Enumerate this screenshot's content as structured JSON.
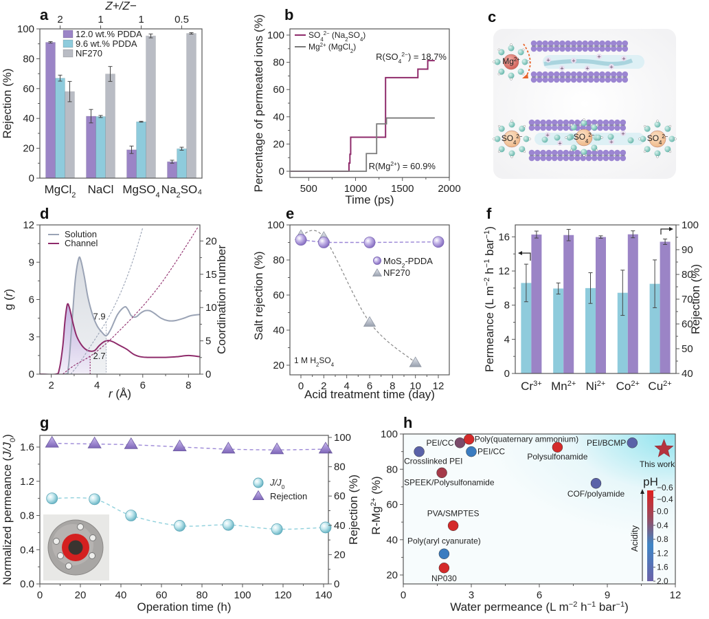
{
  "panels": {
    "a": "a",
    "b": "b",
    "c": "c",
    "d": "d",
    "e": "e",
    "f": "f",
    "g": "g",
    "h": "h"
  },
  "colors": {
    "purple": "#9b84c6",
    "cyan": "#8ecbdc",
    "grey": "#b9bcc4",
    "magenta": "#8e2a6a",
    "darkgrey": "#7a7a7a",
    "red": "#d42a2a"
  },
  "diagram_c": {
    "ion_mg": "Mg2+",
    "ion_so4": "SO4 2-"
  },
  "chart_data": [
    {
      "id": "a",
      "type": "bar",
      "title": "",
      "top_axis_label": "Z+/Z−",
      "top_ticks": [
        "2",
        "1",
        "1",
        "0.5"
      ],
      "xlabel": "",
      "ylabel": "Rejection (%)",
      "ylim": [
        0,
        100
      ],
      "yticks": [
        0,
        20,
        40,
        60,
        80,
        100
      ],
      "categories": [
        "MgCl2",
        "NaCl",
        "MgSO4",
        "Na2SO4"
      ],
      "category_labels": [
        {
          "main": "MgCl",
          "sub": "2",
          "tail": ""
        },
        {
          "main": "NaCl",
          "sub": "",
          "tail": ""
        },
        {
          "main": "MgSO",
          "sub": "4",
          "tail": ""
        },
        {
          "main": "Na",
          "sub": "2",
          "tail": "SO₄"
        }
      ],
      "legend_position": "top-left",
      "series": [
        {
          "name": "12.0 wt.% PDDA",
          "color": "#9b84c6",
          "values": [
            91,
            41.5,
            19,
            11
          ],
          "errors": [
            0.5,
            4.5,
            2.5,
            1
          ]
        },
        {
          "name": "9.6 wt.% PDDA",
          "color": "#8ecbdc",
          "values": [
            67,
            41.3,
            37.8,
            19.7
          ],
          "errors": [
            2,
            0.7,
            0.3,
            1
          ]
        },
        {
          "name": "NF270",
          "color": "#b9bcc4",
          "values": [
            58,
            69.8,
            95.3,
            97
          ],
          "errors": [
            6.8,
            5,
            1.3,
            0.5
          ]
        }
      ]
    },
    {
      "id": "b",
      "type": "line",
      "title": "",
      "xlabel": "Time (ps)",
      "ylabel": "Percentage of permeated ions (%)",
      "xlim": [
        300,
        2000
      ],
      "ylim": [
        -5,
        105
      ],
      "xticks": [
        500,
        1000,
        1500,
        2000
      ],
      "yticks": [
        0,
        20,
        40,
        60,
        80,
        100
      ],
      "legend_position": "top-left",
      "series": [
        {
          "name": "SO4 2− (Na2SO4)",
          "color": "#8e2a6a",
          "x": [
            300,
            930,
            930,
            940,
            940,
            948,
            948,
            1320,
            1320,
            1665,
            1665,
            1770,
            1770,
            1845
          ],
          "y": [
            0,
            0,
            6,
            6,
            12.5,
            12.5,
            25,
            25,
            68.75,
            68.75,
            75,
            75,
            81.25,
            81.25
          ]
        },
        {
          "name": "Mg2+ (MgCl2)",
          "color": "#7a7a7a",
          "x": [
            300,
            1115,
            1115,
            1225,
            1225,
            1330,
            1330,
            1845
          ],
          "y": [
            0,
            0,
            13,
            13,
            34.8,
            34.8,
            39.1,
            39.1
          ]
        }
      ],
      "annotations": [
        {
          "text": "R(SO4 2−) = 18.7%",
          "color": "#a0407a"
        },
        {
          "text": "R(Mg2+) = 60.9%",
          "color": "#222"
        }
      ]
    },
    {
      "id": "d",
      "type": "line",
      "xlabel": "r (Å)",
      "ylabel": "g (r)",
      "ylabel_right": "Coordination number",
      "xlim": [
        1.5,
        8.5
      ],
      "ylim": [
        0,
        12
      ],
      "ylim_right": [
        0,
        22
      ],
      "xticks": [
        2,
        4,
        6,
        8
      ],
      "yticks": [
        0,
        3,
        6,
        9,
        12
      ],
      "yticks_right": [
        0,
        5,
        10,
        15,
        20
      ],
      "legend_position": "top-left",
      "series": [
        {
          "name": "Solution",
          "color": "#9aa3b5",
          "x": [
            1.5,
            2.6,
            2.75,
            2.9,
            3.05,
            3.2,
            3.3,
            3.45,
            3.6,
            3.8,
            4.0,
            4.2,
            4.4,
            4.6,
            4.9,
            5.2,
            5.35,
            5.5,
            5.7,
            5.9,
            6.1,
            6.3,
            6.5,
            6.8,
            7.1,
            7.4,
            7.8,
            8.1,
            8.5
          ],
          "y": [
            0,
            0,
            0.6,
            4.0,
            7.6,
            9.3,
            9.1,
            7.8,
            6.2,
            4.8,
            3.9,
            3.4,
            3.1,
            3.6,
            4.8,
            5.4,
            5.2,
            4.7,
            4.6,
            4.9,
            5.1,
            5.1,
            4.9,
            4.5,
            4.3,
            4.3,
            4.5,
            4.7,
            4.8
          ]
        },
        {
          "name": "Channel",
          "color": "#8e2a6a",
          "x": [
            1.5,
            2.2,
            2.35,
            2.5,
            2.6,
            2.7,
            2.8,
            2.95,
            3.1,
            3.3,
            3.5,
            3.7,
            3.9,
            4.1,
            4.3,
            4.5,
            4.7,
            5.0,
            5.3,
            5.6,
            5.9,
            6.2,
            6.6,
            7.0,
            7.5,
            8.0,
            8.5
          ],
          "y": [
            0,
            0,
            0.4,
            2.2,
            4.3,
            5.6,
            5.3,
            4.1,
            3.1,
            2.4,
            2.0,
            1.85,
            1.9,
            2.3,
            2.6,
            2.7,
            2.6,
            2.3,
            2.0,
            1.6,
            1.4,
            1.35,
            1.35,
            1.35,
            1.4,
            1.5,
            1.4
          ]
        },
        {
          "name": "Solution coordination number",
          "color": "#9aa3b5",
          "dashed": true,
          "axis": "right",
          "x": [
            2.85,
            3.2,
            3.6,
            4.0,
            4.4,
            4.8,
            5.2,
            5.6,
            6.0
          ],
          "y": [
            0,
            1.5,
            3.6,
            5.7,
            7.9,
            10.5,
            13.6,
            17.4,
            22
          ]
        },
        {
          "name": "Channel coordination number",
          "color": "#8e2a6a",
          "dashed": true,
          "axis": "right",
          "x": [
            2.5,
            3.0,
            3.7,
            4.4,
            5.0,
            5.6,
            6.2,
            6.8,
            7.4,
            8.0,
            8.4
          ],
          "y": [
            0,
            1.3,
            2.7,
            4.6,
            6.6,
            8.7,
            11.0,
            13.6,
            16.6,
            19.8,
            22
          ]
        }
      ],
      "annotations": [
        {
          "text": "7.9",
          "x": 4.4
        },
        {
          "text": "2.7",
          "x": 3.7
        }
      ]
    },
    {
      "id": "e",
      "type": "scatter",
      "xlabel": "Acid treatment time (day)",
      "ylabel": "Salt rejection (%)",
      "xlim": [
        -0.5,
        13
      ],
      "ylim": [
        15,
        100
      ],
      "xticks": [
        0,
        2,
        4,
        6,
        8,
        10,
        12
      ],
      "yticks": [
        20,
        40,
        60,
        80,
        100
      ],
      "legend_position": "center-right",
      "annotation": "1 M H2SO4",
      "series": [
        {
          "name": "MoS2-PDDA",
          "marker": "circle",
          "color": "#a48fd6",
          "x": [
            0,
            2,
            6,
            12
          ],
          "y": [
            91.5,
            90,
            90,
            90.3
          ]
        },
        {
          "name": "NF270",
          "marker": "triangle",
          "color": "#b5bac4",
          "x": [
            0,
            2,
            6,
            10
          ],
          "y": [
            94,
            93,
            44.5,
            21.5
          ]
        }
      ]
    },
    {
      "id": "f",
      "type": "bar",
      "xlabel": "",
      "ylabel": "Permeance (L m−2 h−1 bar−1)",
      "ylabel_right": "Rejection (%)",
      "ylim": [
        0,
        17.4
      ],
      "ylim_right": [
        40,
        100
      ],
      "yticks": [
        0,
        4,
        8,
        12,
        16
      ],
      "yticks_right": [
        40,
        50,
        60,
        70,
        80,
        90,
        100
      ],
      "categories": [
        "Cr3+",
        "Mn2+",
        "Ni2+",
        "Co2+",
        "Cu2+"
      ],
      "category_labels": [
        {
          "main": "Cr",
          "sup": "3+"
        },
        {
          "main": "Mn",
          "sup": "2+"
        },
        {
          "main": "Ni",
          "sup": "2+"
        },
        {
          "main": "Co",
          "sup": "2+"
        },
        {
          "main": "Cu",
          "sup": "2+"
        }
      ],
      "series": [
        {
          "name": "Permeance",
          "axis": "left",
          "color": "#8ecbdc",
          "values": [
            10.6,
            9.95,
            10.0,
            9.45,
            10.5
          ],
          "errors": [
            2.2,
            0.65,
            1.8,
            2.65,
            2.8
          ]
        },
        {
          "name": "Rejection",
          "axis": "right",
          "color": "#9b84c6",
          "values": [
            96.1,
            95.9,
            95.1,
            96.2,
            93.2
          ],
          "errors": [
            1.4,
            2.3,
            0.5,
            1.4,
            1.1
          ]
        }
      ]
    },
    {
      "id": "g",
      "type": "scatter",
      "xlabel": "Operation time (h)",
      "ylabel": "Normalized permeance (J/J0)",
      "ylabel_right": "Rejection (%)",
      "xlim": [
        0,
        145
      ],
      "ylim": [
        0,
        1.74
      ],
      "ylim_right": [
        0,
        102
      ],
      "xticks": [
        0,
        20,
        40,
        60,
        80,
        100,
        120,
        140
      ],
      "yticks": [
        0.0,
        0.4,
        0.8,
        1.2,
        1.6
      ],
      "ytick_labels": [
        "0.0",
        "0.4",
        "0.8",
        "1.2",
        "1.6"
      ],
      "yticks_right": [
        0,
        20,
        40,
        60,
        80,
        100
      ],
      "legend_position": "center-right",
      "series": [
        {
          "name": "J/J0",
          "marker": "circle",
          "color": "#8fd0dc",
          "axis": "left",
          "x": [
            6,
            27,
            45,
            69,
            93,
            117,
            141
          ],
          "y": [
            1.0,
            0.99,
            0.8,
            0.68,
            0.69,
            0.64,
            0.66
          ]
        },
        {
          "name": "Rejection",
          "marker": "triangle",
          "color": "#a48fd6",
          "axis": "right",
          "x": [
            6,
            27,
            45,
            69,
            93,
            117,
            141
          ],
          "y": [
            96,
            95.5,
            95,
            93.5,
            92,
            91.5,
            92
          ]
        }
      ],
      "inset": "photo of membrane module"
    },
    {
      "id": "h",
      "type": "scatter",
      "xlabel": "Water permeance (L m−2 h−1 bar−1)",
      "ylabel": "R-Mg2+ (%)",
      "xlim": [
        0,
        12
      ],
      "ylim": [
        15,
        100
      ],
      "xticks": [
        0,
        3,
        6,
        9,
        12
      ],
      "yticks": [
        20,
        40,
        60,
        80,
        100
      ],
      "colorbar": {
        "title": "pH",
        "label": "Acidity",
        "ticks": [
          "−0.6",
          "−0.4",
          "0.0",
          "0.4",
          "0.8",
          "1.2",
          "1.6",
          "2.0"
        ],
        "range": [
          -0.6,
          2.0
        ]
      },
      "points": [
        {
          "label": "Crosslinked PEI",
          "x": 0.7,
          "y": 90,
          "color": "#5a62a8"
        },
        {
          "label": "PEI/CC",
          "x": 2.5,
          "y": 95,
          "color": "#7a4a6a"
        },
        {
          "label": "Poly(quaternary ammonium)",
          "x": 2.9,
          "y": 97,
          "color": "#d42a2a"
        },
        {
          "label": "PEI/CC",
          "x": 3.0,
          "y": 90,
          "color": "#3a7cc0"
        },
        {
          "label": "SPEEK/Polysulfonamide",
          "x": 1.7,
          "y": 78,
          "color": "#a53a4a"
        },
        {
          "label": "PVA/SMPTES",
          "x": 2.2,
          "y": 48,
          "color": "#d42a2a"
        },
        {
          "label": "Poly(aryl cyanurate)",
          "x": 1.8,
          "y": 32,
          "color": "#3a7cc0"
        },
        {
          "label": "NP030",
          "x": 1.8,
          "y": 24,
          "color": "#d42a2a"
        },
        {
          "label": "Polysulfonamide",
          "x": 6.8,
          "y": 92.5,
          "color": "#d42a2a"
        },
        {
          "label": "PEI/BCMP",
          "x": 10.1,
          "y": 95,
          "color": "#5a62a8"
        },
        {
          "label": "COF/polyamide",
          "x": 8.5,
          "y": 72,
          "color": "#5a62a8"
        },
        {
          "label": "This work",
          "x": 11.5,
          "y": 91.5,
          "color": "#b5333e",
          "marker": "star"
        }
      ]
    }
  ]
}
